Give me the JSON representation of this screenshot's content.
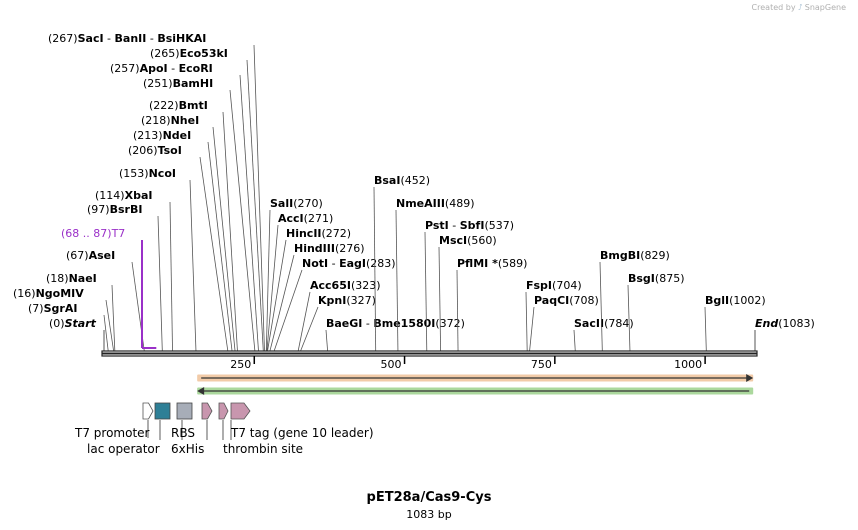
{
  "credit": {
    "prefix": "Created by",
    "brand": "SnapGene"
  },
  "plasmid": {
    "name": "pET28a/Cas9-Cys",
    "length_label": "1083 bp"
  },
  "colors": {
    "t7": "#9a30c8",
    "arrow_forward": "#e8a060",
    "arrow_reverse": "#66b84c",
    "rbs": "#a7adb8",
    "his": "#2e7f96",
    "t7tag": "#c896ae",
    "frame": "#222222"
  },
  "ruler": {
    "min": 0,
    "max": 1083,
    "ticks": [
      "250",
      "500",
      "750",
      "1000"
    ]
  },
  "sites": [
    {
      "id": "start",
      "pos": "(0)",
      "names": [
        "Start"
      ],
      "bp": 0,
      "style": "italic"
    },
    {
      "id": "sgrai",
      "pos": "(7)",
      "names": [
        "SgrAI"
      ],
      "bp": 7
    },
    {
      "id": "ngomiv",
      "pos": "(16)",
      "names": [
        "NgoMIV"
      ],
      "bp": 16
    },
    {
      "id": "naei",
      "pos": "(18)",
      "names": [
        "NaeI"
      ],
      "bp": 18
    },
    {
      "id": "asei",
      "pos": "(67)",
      "names": [
        "AseI"
      ],
      "bp": 67
    },
    {
      "id": "t7",
      "pos": "(68 .. 87)",
      "names": [
        "T7"
      ],
      "bp": 68,
      "style": "feature"
    },
    {
      "id": "bsrbi",
      "pos": "(97)",
      "names": [
        "BsrBI"
      ],
      "bp": 97
    },
    {
      "id": "xbai",
      "pos": "(114)",
      "names": [
        "XbaI"
      ],
      "bp": 114
    },
    {
      "id": "ncoi",
      "pos": "(153)",
      "names": [
        "NcoI"
      ],
      "bp": 153
    },
    {
      "id": "tsoi",
      "pos": "(206)",
      "names": [
        "TsoI"
      ],
      "bp": 206
    },
    {
      "id": "ndei",
      "pos": "(213)",
      "names": [
        "NdeI"
      ],
      "bp": 213
    },
    {
      "id": "nhei",
      "pos": "(218)",
      "names": [
        "NheI"
      ],
      "bp": 218
    },
    {
      "id": "bmti",
      "pos": "(222)",
      "names": [
        "BmtI"
      ],
      "bp": 222
    },
    {
      "id": "bamhi",
      "pos": "(251)",
      "names": [
        "BamHI"
      ],
      "bp": 251
    },
    {
      "id": "apoi",
      "pos": "(257)",
      "names": [
        "ApoI",
        "EcoRI"
      ],
      "bp": 257
    },
    {
      "id": "eco53ki",
      "pos": "(265)",
      "names": [
        "Eco53kI"
      ],
      "bp": 265
    },
    {
      "id": "saci",
      "pos": "(267)",
      "names": [
        "SacI",
        "BanII",
        "BsiHKAI"
      ],
      "bp": 267
    },
    {
      "id": "sali",
      "pos": "(270)",
      "names": [
        "SalI"
      ],
      "bp": 270
    },
    {
      "id": "acci",
      "pos": "(271)",
      "names": [
        "AccI"
      ],
      "bp": 271
    },
    {
      "id": "hincii",
      "pos": "(272)",
      "names": [
        "HincII"
      ],
      "bp": 272
    },
    {
      "id": "hindiii",
      "pos": "(276)",
      "names": [
        "HindIII"
      ],
      "bp": 276
    },
    {
      "id": "noti",
      "pos": "(283)",
      "names": [
        "NotI",
        "EagI"
      ],
      "bp": 283
    },
    {
      "id": "acc65i",
      "pos": "(323)",
      "names": [
        "Acc65I"
      ],
      "bp": 323
    },
    {
      "id": "kpni",
      "pos": "(327)",
      "names": [
        "KpnI"
      ],
      "bp": 327
    },
    {
      "id": "baegi",
      "pos": "(372)",
      "names": [
        "BaeGI",
        "Bme1580I"
      ],
      "bp": 372
    },
    {
      "id": "bsai",
      "pos": "(452)",
      "names": [
        "BsaI"
      ],
      "bp": 452
    },
    {
      "id": "nmeaiii",
      "pos": "(489)",
      "names": [
        "NmeAIII"
      ],
      "bp": 489
    },
    {
      "id": "psti",
      "pos": "(537)",
      "names": [
        "PstI",
        "SbfI"
      ],
      "bp": 537
    },
    {
      "id": "msci",
      "pos": "(560)",
      "names": [
        "MscI"
      ],
      "bp": 560
    },
    {
      "id": "pflmi",
      "pos": "(589)",
      "names": [
        "PflMI *"
      ],
      "bp": 589
    },
    {
      "id": "fspi",
      "pos": "(704)",
      "names": [
        "FspI"
      ],
      "bp": 704
    },
    {
      "id": "paqci",
      "pos": "(708)",
      "names": [
        "PaqCI"
      ],
      "bp": 708
    },
    {
      "id": "sacii",
      "pos": "(784)",
      "names": [
        "SacII"
      ],
      "bp": 784
    },
    {
      "id": "bmgbi",
      "pos": "(829)",
      "names": [
        "BmgBI"
      ],
      "bp": 829
    },
    {
      "id": "bsgi",
      "pos": "(875)",
      "names": [
        "BsgI"
      ],
      "bp": 875
    },
    {
      "id": "bgli",
      "pos": "(1002)",
      "names": [
        "BglI"
      ],
      "bp": 1002
    },
    {
      "id": "end",
      "pos": "(1083)",
      "names": [
        "End"
      ],
      "bp": 1083,
      "style": "italic"
    }
  ],
  "orf_arrows": [
    {
      "id": "orf-forward",
      "direction": "forward",
      "start": 155,
      "end": 1080
    },
    {
      "id": "orf-reverse",
      "direction": "reverse",
      "start": 155,
      "end": 1080
    }
  ],
  "features": [
    {
      "id": "t7-promoter",
      "label": "T7 promoter",
      "shape": "arrow",
      "color": "#ffffff"
    },
    {
      "id": "lac-operator",
      "label": "lac operator",
      "shape": "box",
      "color": "#2e7f96"
    },
    {
      "id": "rbs",
      "label": "RBS",
      "shape": "box",
      "color": "#a7adb8"
    },
    {
      "id": "6xhis",
      "label": "6xHis",
      "shape": "arrow",
      "color": "#c896ae"
    },
    {
      "id": "thrombin-site",
      "label": "thrombin site",
      "shape": "arrow",
      "color": "#c896ae"
    },
    {
      "id": "t7-tag",
      "label": "T7 tag (gene 10 leader)",
      "shape": "arrow",
      "color": "#c896ae"
    }
  ]
}
